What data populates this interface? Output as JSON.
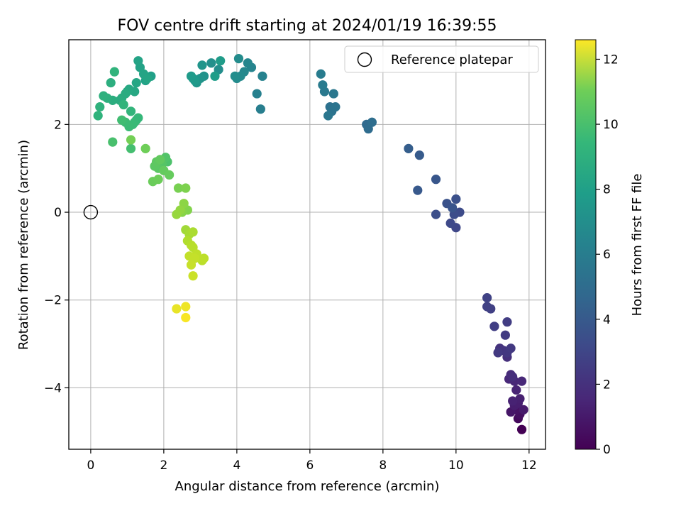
{
  "chart_data": {
    "type": "scatter",
    "title": "FOV centre drift starting at 2024/01/19 16:39:55",
    "xlabel": "Angular distance from reference (arcmin)",
    "ylabel": "Rotation from reference (arcmin)",
    "xlim": [
      -0.6,
      12.45
    ],
    "ylim": [
      -5.4,
      3.93
    ],
    "xticks": [
      0,
      2,
      4,
      6,
      8,
      10,
      12
    ],
    "yticks": [
      -4,
      -2,
      0,
      2
    ],
    "grid": true,
    "legend": {
      "placement": "top-right",
      "entries": [
        "Reference platepar"
      ]
    },
    "colorbar": {
      "label": "Hours from first FF file",
      "range": [
        0,
        12.6
      ],
      "ticks": [
        0,
        2,
        4,
        6,
        8,
        10,
        12
      ],
      "colormap": "viridis"
    },
    "reference_point": {
      "x": 0,
      "y": 0
    },
    "series": [
      {
        "x": [
          11.8,
          11.7,
          11.75,
          11.65,
          11.5,
          11.85,
          11.6,
          11.7,
          11.75,
          11.55,
          11.65,
          11.6,
          11.8,
          11.45,
          11.5,
          11.55,
          11.4,
          11.2,
          11.3,
          11.4,
          11.5,
          11.15,
          11.35,
          11.4,
          11.05,
          10.95,
          10.85,
          10.85,
          10.0,
          9.85,
          10.1,
          9.95,
          9.45,
          10.0,
          9.75,
          9.9,
          9.45,
          8.95,
          9.0,
          8.7,
          7.55,
          7.6,
          7.7,
          6.55,
          6.6,
          6.7,
          6.5,
          6.65,
          6.4,
          6.35,
          6.3,
          4.65,
          4.55,
          4.7,
          4.4,
          4.3,
          4.2,
          4.1,
          4.0,
          4.05,
          3.95,
          3.5,
          3.3,
          3.1,
          3.0,
          3.05,
          2.9,
          2.8,
          2.85,
          2.75,
          3.55,
          3.4,
          1.65,
          1.5,
          1.35,
          1.3,
          1.45,
          1.55,
          1.25,
          1.2,
          1.05,
          1.0,
          0.95,
          0.85,
          0.8,
          0.6,
          0.55,
          0.45,
          0.35,
          0.25,
          0.2,
          0.65,
          0.9,
          1.1,
          1.25,
          1.3,
          1.2,
          1.15,
          1.05,
          0.95,
          0.85,
          1.1,
          0.6,
          2.1,
          2.05,
          1.95,
          1.85,
          1.75,
          1.8,
          1.9,
          2.0,
          2.15,
          1.7,
          1.85,
          1.5,
          1.1,
          2.4,
          2.6,
          2.65,
          2.5,
          2.55,
          2.45,
          2.35,
          2.6,
          2.7,
          2.8,
          2.65,
          2.75,
          2.8,
          3.05,
          3.1,
          2.9,
          2.7,
          2.85,
          2.75,
          2.8,
          2.35,
          2.6,
          2.6
        ],
        "y": [
          -4.95,
          -4.7,
          -4.6,
          -4.5,
          -4.55,
          -4.5,
          -4.4,
          -4.35,
          -4.25,
          -4.3,
          -4.05,
          -3.85,
          -3.85,
          -3.8,
          -3.7,
          -3.75,
          -3.3,
          -3.1,
          -3.15,
          -3.2,
          -3.1,
          -3.2,
          -2.8,
          -2.5,
          -2.6,
          -2.2,
          -2.15,
          -1.95,
          -0.35,
          -0.25,
          0.0,
          -0.05,
          -0.05,
          0.3,
          0.2,
          0.1,
          0.75,
          0.5,
          1.3,
          1.45,
          2.0,
          1.9,
          2.05,
          2.4,
          2.3,
          2.4,
          2.2,
          2.7,
          2.75,
          2.9,
          3.15,
          2.35,
          2.7,
          3.1,
          3.3,
          3.4,
          3.2,
          3.1,
          3.05,
          3.5,
          3.1,
          3.25,
          3.4,
          3.1,
          3.05,
          3.35,
          2.95,
          3.05,
          3.0,
          3.1,
          3.45,
          3.1,
          3.1,
          3.0,
          3.3,
          3.45,
          3.15,
          3.05,
          2.95,
          2.75,
          2.8,
          2.75,
          2.7,
          2.6,
          2.55,
          2.55,
          2.95,
          2.6,
          2.65,
          2.4,
          2.2,
          3.2,
          2.45,
          2.3,
          2.1,
          2.15,
          2.05,
          2.0,
          1.95,
          2.05,
          2.1,
          1.45,
          1.6,
          1.15,
          1.25,
          1.1,
          1.0,
          1.05,
          1.15,
          1.2,
          0.95,
          0.85,
          0.7,
          0.75,
          1.45,
          1.65,
          0.55,
          0.55,
          0.05,
          0.0,
          0.2,
          0.05,
          -0.05,
          -0.4,
          -0.5,
          -0.45,
          -0.65,
          -0.75,
          -0.8,
          -1.1,
          -1.05,
          -0.95,
          -1.0,
          -1.05,
          -1.2,
          -1.45,
          -2.2,
          -2.15,
          -2.4
        ],
        "c": [
          0.0,
          0.3,
          0.45,
          0.6,
          0.75,
          0.9,
          1.0,
          1.05,
          1.1,
          1.2,
          1.25,
          1.35,
          1.4,
          1.45,
          1.55,
          1.65,
          1.75,
          1.85,
          1.95,
          2.05,
          2.1,
          2.15,
          2.2,
          2.3,
          2.35,
          2.4,
          2.45,
          2.5,
          2.7,
          2.8,
          2.9,
          3.0,
          3.05,
          3.1,
          3.2,
          3.3,
          3.4,
          3.5,
          3.6,
          3.75,
          4.3,
          4.4,
          4.5,
          4.7,
          4.8,
          4.85,
          4.95,
          5.0,
          5.1,
          5.2,
          5.3,
          5.4,
          5.5,
          5.6,
          5.7,
          5.8,
          5.9,
          6.0,
          6.05,
          6.1,
          6.15,
          6.2,
          6.3,
          6.4,
          6.5,
          6.55,
          6.6,
          6.7,
          6.8,
          6.85,
          6.9,
          6.95,
          7.1,
          7.2,
          7.25,
          7.3,
          7.35,
          7.4,
          7.45,
          7.5,
          7.55,
          7.6,
          7.7,
          7.75,
          7.8,
          7.85,
          7.9,
          7.95,
          8.0,
          8.05,
          8.1,
          8.15,
          8.2,
          8.25,
          8.3,
          8.4,
          8.45,
          8.5,
          8.55,
          8.6,
          8.7,
          8.8,
          8.9,
          9.0,
          9.1,
          9.2,
          9.3,
          9.35,
          9.4,
          9.5,
          9.55,
          9.6,
          9.7,
          9.75,
          9.8,
          9.9,
          10.0,
          10.1,
          10.2,
          10.3,
          10.4,
          10.5,
          10.6,
          10.8,
          10.9,
          11.0,
          11.1,
          11.2,
          11.25,
          11.3,
          11.35,
          11.4,
          11.45,
          11.5,
          11.55,
          11.6,
          12.2,
          12.3,
          12.5
        ]
      }
    ]
  }
}
